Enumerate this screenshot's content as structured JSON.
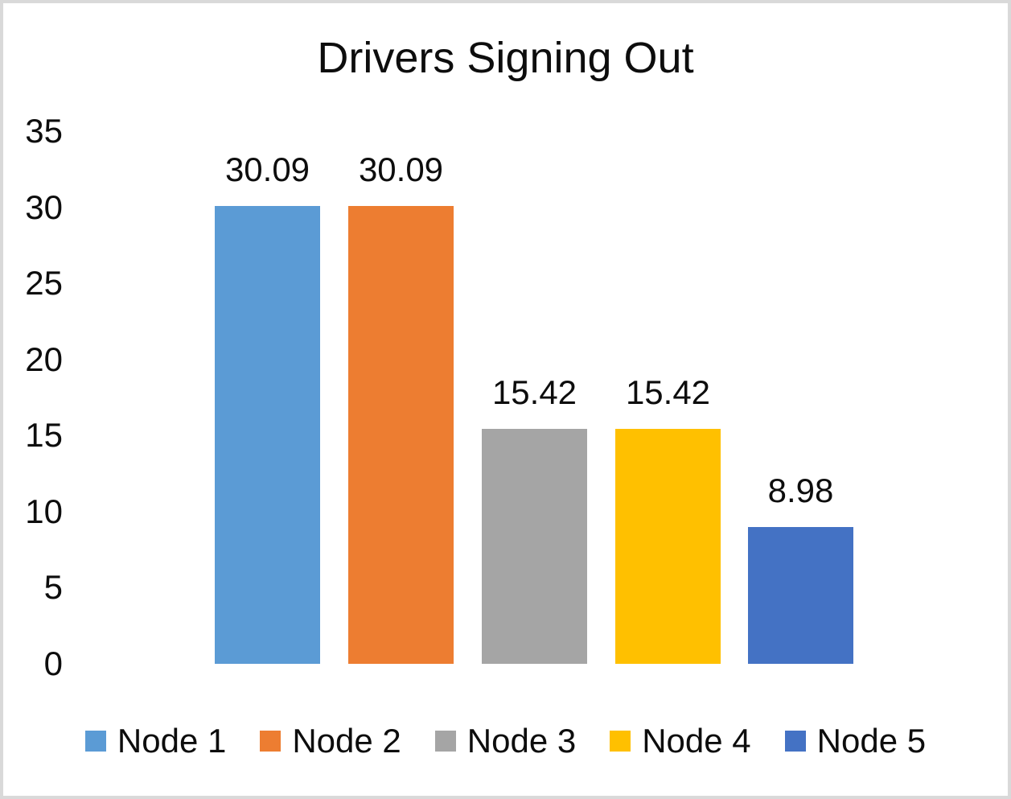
{
  "window": {
    "background": "#ffffff",
    "border_color": "#d9d9d9",
    "text_color": "#0d0d0d"
  },
  "chart_data": {
    "type": "bar",
    "title": "Drivers Signing Out",
    "categories": [
      "Node 1",
      "Node 2",
      "Node 3",
      "Node 4",
      "Node 5"
    ],
    "values": [
      30.09,
      30.09,
      15.42,
      15.42,
      8.98
    ],
    "data_labels": [
      "30.09",
      "30.09",
      "15.42",
      "15.42",
      "8.98"
    ],
    "bar_colors": [
      "#5B9BD5",
      "#ED7D31",
      "#A5A5A5",
      "#FFC000",
      "#4472C4"
    ],
    "yticks": [
      35,
      30,
      25,
      20,
      15,
      10,
      5,
      0
    ],
    "ylim": [
      0,
      35
    ],
    "xlabel": "",
    "ylabel": "",
    "grid": false,
    "axis_lines": false,
    "legend_position": "bottom"
  }
}
